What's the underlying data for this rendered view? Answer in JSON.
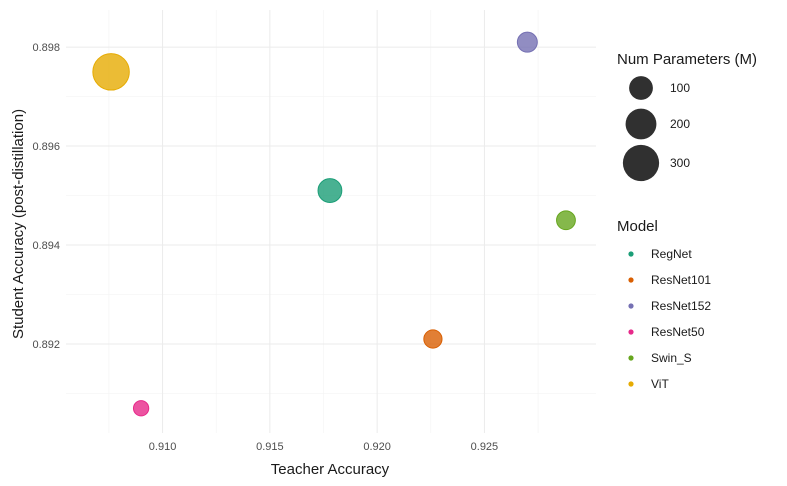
{
  "chart_data": {
    "type": "scatter",
    "title": "",
    "xlabel": "Teacher Accuracy",
    "ylabel": "Student Accuracy (post-distillation)",
    "xlim": [
      0.9055,
      0.9302
    ],
    "ylim": [
      0.8902,
      0.89875
    ],
    "x_ticks": [
      "0.910",
      "0.915",
      "0.920",
      "0.925"
    ],
    "x_tick_values": [
      0.91,
      0.915,
      0.92,
      0.925
    ],
    "y_ticks": [
      "0.892",
      "0.894",
      "0.896",
      "0.898"
    ],
    "y_tick_values": [
      0.892,
      0.894,
      0.896,
      0.898
    ],
    "grid": true,
    "points": [
      {
        "model": "RegNet",
        "x": 0.9178,
        "y": 0.8951,
        "params": 100
      },
      {
        "model": "ResNet101",
        "x": 0.9226,
        "y": 0.8921,
        "params": 45
      },
      {
        "model": "ResNet152",
        "x": 0.927,
        "y": 0.8981,
        "params": 60
      },
      {
        "model": "ResNet50",
        "x": 0.909,
        "y": 0.8907,
        "params": 25
      },
      {
        "model": "Swin_S",
        "x": 0.9288,
        "y": 0.8945,
        "params": 50
      },
      {
        "model": "ViT",
        "x": 0.9076,
        "y": 0.8975,
        "params": 304
      }
    ],
    "size_legend": {
      "title": "Num Parameters (M)",
      "entries": [
        {
          "label": "100",
          "value": 100
        },
        {
          "label": "200",
          "value": 200
        },
        {
          "label": "300",
          "value": 300
        }
      ]
    },
    "color_legend": {
      "title": "Model",
      "entries": [
        {
          "label": "RegNet",
          "color": "#1b9e77"
        },
        {
          "label": "ResNet101",
          "color": "#d95f02"
        },
        {
          "label": "ResNet152",
          "color": "#7570b3"
        },
        {
          "label": "ResNet50",
          "color": "#e7298a"
        },
        {
          "label": "Swin_S",
          "color": "#66a61e"
        },
        {
          "label": "ViT",
          "color": "#e6ab02"
        }
      ]
    },
    "legend_position": "right"
  }
}
